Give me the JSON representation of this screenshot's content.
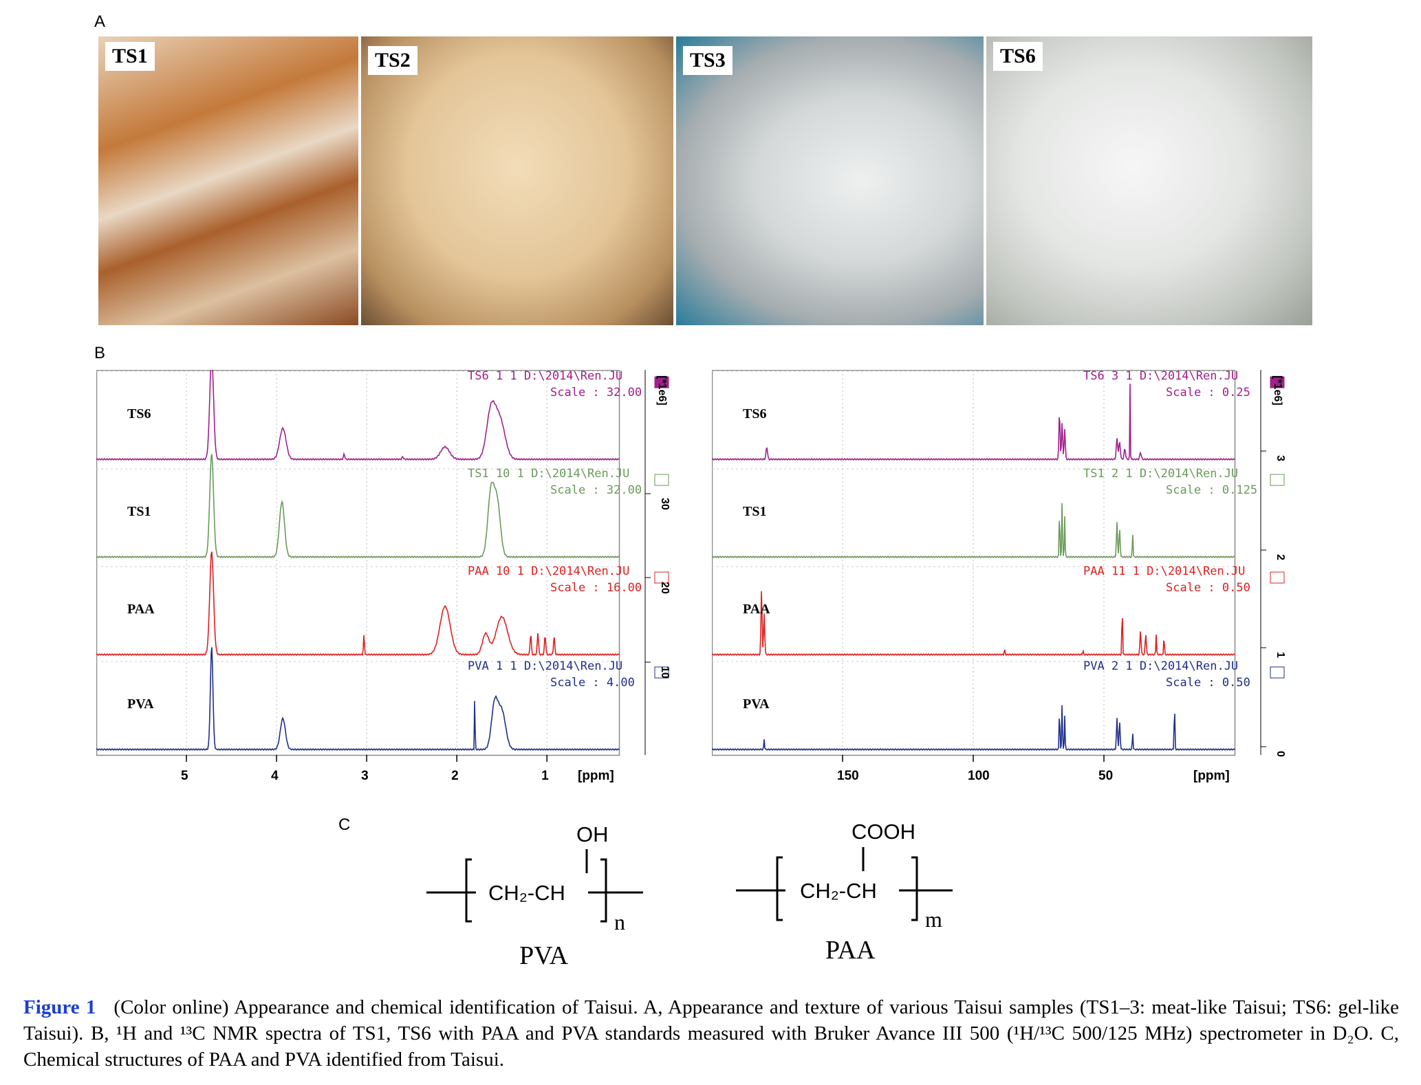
{
  "panels": {
    "a": "A",
    "b": "B",
    "c": "C"
  },
  "photos": [
    {
      "label": "TS1"
    },
    {
      "label": "TS2"
    },
    {
      "label": "TS3"
    },
    {
      "label": "TS6"
    }
  ],
  "nmr_1h": {
    "axis_unit": "[ppm]",
    "x_ticks": [
      "5",
      "4",
      "3",
      "2",
      "1"
    ],
    "right_scale_ticks": [
      "30",
      "20",
      "10"
    ],
    "right_scale_unit": "[*1e6]",
    "traces": [
      {
        "name": "TS6",
        "header": "TS6  1  1  D:\\2014\\Ren.JU",
        "scale": "Scale : 32.00",
        "color": "#a0208c"
      },
      {
        "name": "TS1",
        "header": "TS1  10  1  D:\\2014\\Ren.JU",
        "scale": "Scale : 32.00",
        "color": "#6a9a5a"
      },
      {
        "name": "PAA",
        "header": "PAA  10  1  D:\\2014\\Ren.JU",
        "scale": "Scale : 16.00",
        "color": "#dd2020"
      },
      {
        "name": "PVA",
        "header": "PVA  1  1  D:\\2014\\Ren.JU",
        "scale": "Scale : 4.00",
        "color": "#1f2f8a"
      }
    ]
  },
  "nmr_13c": {
    "axis_unit": "[ppm]",
    "x_ticks": [
      "150",
      "100",
      "50"
    ],
    "right_scale_ticks": [
      "3",
      "2",
      "1",
      "0"
    ],
    "right_scale_unit": "[*1e6]",
    "traces": [
      {
        "name": "TS6",
        "header": "TS6  3  1  D:\\2014\\Ren.JU",
        "scale": "Scale : 0.25",
        "color": "#a0208c"
      },
      {
        "name": "TS1",
        "header": "TS1  2  1  D:\\2014\\Ren.JU",
        "scale": "Scale : 0.125",
        "color": "#6a9a5a"
      },
      {
        "name": "PAA",
        "header": "PAA  11  1  D:\\2014\\Ren.JU",
        "scale": "Scale : 0.50",
        "color": "#dd2020"
      },
      {
        "name": "PVA",
        "header": "PVA  2  1  D:\\2014\\Ren.JU",
        "scale": "Scale : 0.50",
        "color": "#1f2f8a"
      }
    ]
  },
  "structures": {
    "pva": {
      "group": "OH",
      "backbone": "CH₂-CH",
      "subscript": "n",
      "name": "PVA"
    },
    "paa": {
      "group": "COOH",
      "backbone": "CH₂-CH",
      "subscript": "m",
      "name": "PAA"
    }
  },
  "caption": {
    "label": "Figure 1",
    "text": "(Color online) Appearance and chemical identification of Taisui. A, Appearance and texture of various Taisui samples (TS1–3: meat-like Taisui; TS6: gel-like Taisui). B, ¹H and ¹³C NMR spectra of TS1, TS6 with PAA and PVA standards measured with Bruker Avance III 500 (¹H/¹³C 500/125 MHz) spectrometer in D₂O. C, Chemical structures of PAA and PVA identified from Taisui."
  }
}
